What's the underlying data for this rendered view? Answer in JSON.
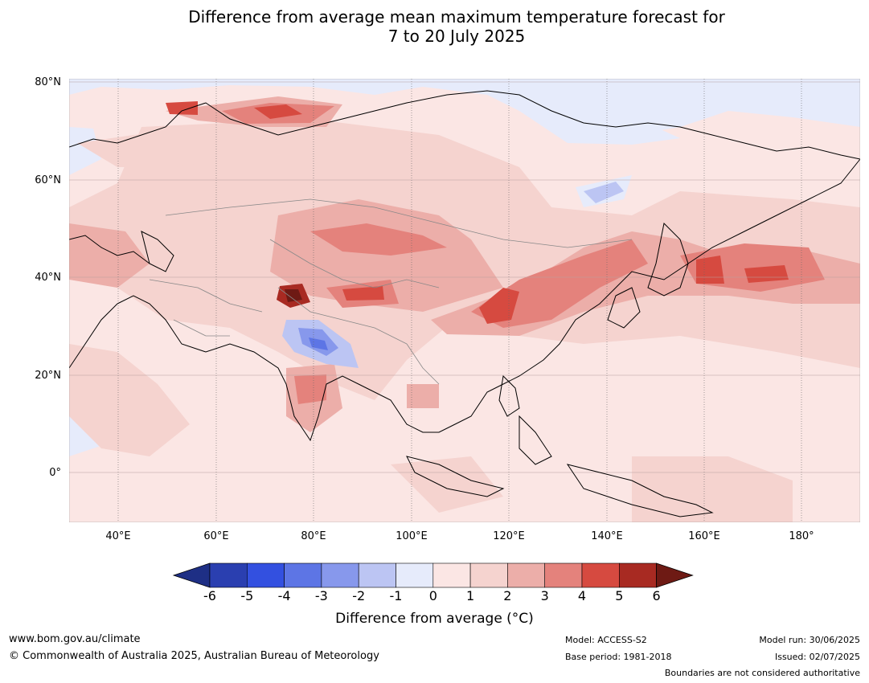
{
  "title_line1": "Difference from average mean maximum temperature forecast for",
  "title_line2": "7 to 20 July 2025",
  "lat_labels": [
    "80°N",
    "60°N",
    "40°N",
    "20°N",
    "0°"
  ],
  "lon_labels": [
    "40°E",
    "60°E",
    "80°E",
    "100°E",
    "120°E",
    "140°E",
    "160°E",
    "180°"
  ],
  "colorbar": {
    "ticks": [
      "-6",
      "-5",
      "-4",
      "-3",
      "-2",
      "-1",
      "0",
      "1",
      "2",
      "3",
      "4",
      "5",
      "6"
    ],
    "colors": [
      "#1e2f85",
      "#2a3fb0",
      "#3350e0",
      "#5d75e5",
      "#8798ec",
      "#bcc5f3",
      "#e6ebfb",
      "#fbe6e4",
      "#f5d3cf",
      "#ecaea9",
      "#e4827c",
      "#d64a40",
      "#a82a22",
      "#6e1a14"
    ],
    "caption": "Difference from average (°C)"
  },
  "footer": {
    "website": "www.bom.gov.au/climate",
    "copyright": "© Commonwealth of Australia 2025, Australian Bureau of Meteorology",
    "model": "Model: ACCESS-S2",
    "base_period": "Base period: 1981-2018",
    "model_run": "Model run: 30/06/2025",
    "issued": "Issued: 02/07/2025",
    "boundaries": "Boundaries are not considered authoritative"
  }
}
